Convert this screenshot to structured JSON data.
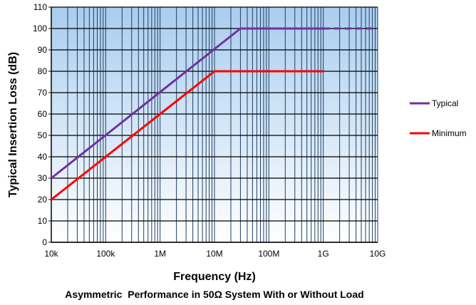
{
  "chart_data": {
    "type": "line",
    "x_scale": "log",
    "xlabel": "Frequency (Hz)",
    "ylabel": "Typical Insertion Loss (dB)",
    "caption": "Asymmetric  Performance in 50Ω System With or Without Load",
    "xlim": [
      10000,
      10000000000
    ],
    "ylim": [
      0,
      110
    ],
    "x_ticks": [
      {
        "value": 10000,
        "label": "10k"
      },
      {
        "value": 100000,
        "label": "100k"
      },
      {
        "value": 1000000,
        "label": "1M"
      },
      {
        "value": 10000000,
        "label": "10M"
      },
      {
        "value": 100000000,
        "label": "100M"
      },
      {
        "value": 1000000000,
        "label": "1G"
      },
      {
        "value": 10000000000,
        "label": "10G"
      }
    ],
    "y_ticks": [
      "0",
      "10",
      "20",
      "30",
      "40",
      "50",
      "60",
      "70",
      "80",
      "90",
      "100",
      "110"
    ],
    "grid": true,
    "legend_position": "right",
    "series": [
      {
        "name": "Typical",
        "color": "#7030A0",
        "points": [
          [
            10000,
            30
          ],
          [
            30000000,
            100
          ],
          [
            1000000000,
            100
          ]
        ],
        "dashed_points": [
          [
            1000000000,
            100
          ],
          [
            10000000000,
            100
          ]
        ]
      },
      {
        "name": "Minimum",
        "color": "#FF0000",
        "points": [
          [
            10000,
            20
          ],
          [
            10000000,
            80
          ],
          [
            1000000000,
            80
          ]
        ]
      }
    ]
  }
}
